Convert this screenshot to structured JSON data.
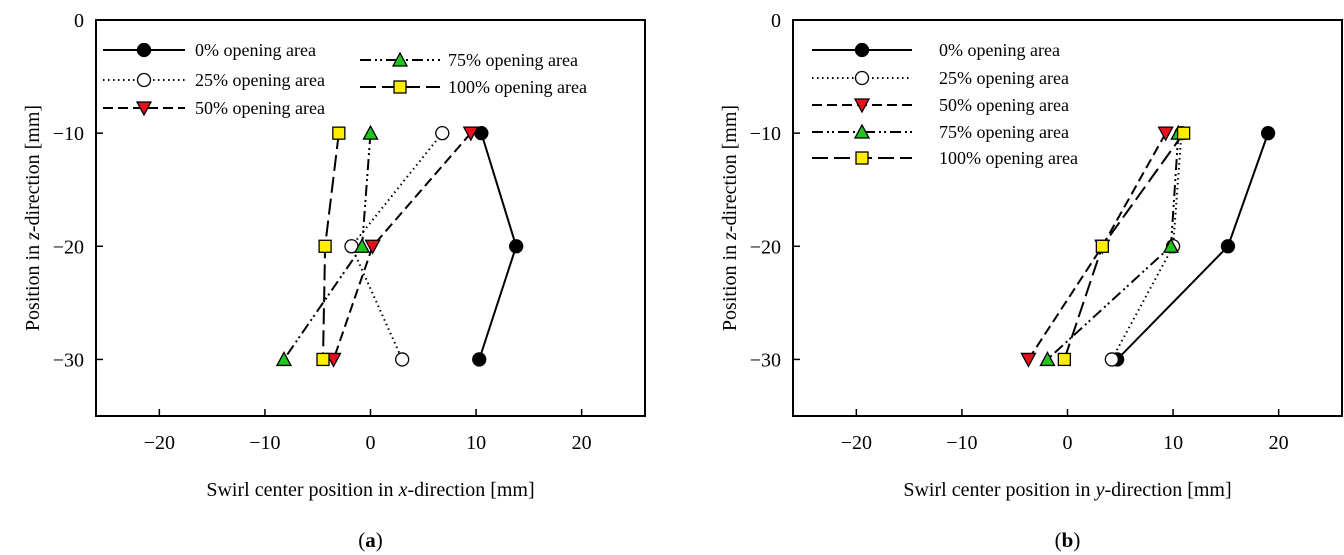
{
  "chart_data": [
    {
      "type": "line",
      "panel_label": "(a)",
      "xlabel": "Swirl center position in x-direction [mm]",
      "xlabel_prefix": "Swirl center position in ",
      "xlabel_var": "x",
      "xlabel_suffix": "-direction [mm]",
      "ylabel_prefix": "Position in ",
      "ylabel_var": "z",
      "ylabel_suffix": "-direction [mm]",
      "xlim": [
        -26,
        26
      ],
      "ylim": [
        -35,
        0
      ],
      "xticks": [
        -20,
        -10,
        0,
        10,
        20
      ],
      "yticks": [
        0,
        -10,
        -20,
        -30
      ],
      "grid": false,
      "legend": "top, two columns",
      "series": [
        {
          "name": "0% opening area",
          "x": [
            10.5,
            13.8,
            10.3
          ],
          "y": [
            -10,
            -20,
            -30
          ]
        },
        {
          "name": "25% opening area",
          "x": [
            6.8,
            -1.8,
            3.0
          ],
          "y": [
            -10,
            -20,
            -30
          ]
        },
        {
          "name": "50% opening area",
          "x": [
            9.5,
            0.2,
            -3.5
          ],
          "y": [
            -10,
            -20,
            -30
          ]
        },
        {
          "name": "75% opening area",
          "x": [
            0.0,
            -0.8,
            -8.2
          ],
          "y": [
            -10,
            -20,
            -30
          ]
        },
        {
          "name": "100% opening area",
          "x": [
            -3.0,
            -4.3,
            -4.5
          ],
          "y": [
            -10,
            -20,
            -30
          ]
        }
      ]
    },
    {
      "type": "line",
      "panel_label": "(b)",
      "xlabel": "Swirl center position in y-direction [mm]",
      "xlabel_prefix": "Swirl center position in ",
      "xlabel_var": "y",
      "xlabel_suffix": "-direction [mm]",
      "ylabel_prefix": "Position in ",
      "ylabel_var": "z",
      "ylabel_suffix": "-direction [mm]",
      "xlim": [
        -26,
        26
      ],
      "ylim": [
        -35,
        0
      ],
      "xticks": [
        -20,
        -10,
        0,
        10,
        20
      ],
      "yticks": [
        0,
        -10,
        -20,
        -30
      ],
      "grid": false,
      "legend": "top-left, one column",
      "series": [
        {
          "name": "0% opening area",
          "x": [
            19.0,
            15.2,
            4.7
          ],
          "y": [
            -10,
            -20,
            -30
          ]
        },
        {
          "name": "25% opening area",
          "x": [
            10.8,
            10.0,
            4.2
          ],
          "y": [
            -10,
            -20,
            -30
          ]
        },
        {
          "name": "50% opening area",
          "x": [
            9.3,
            3.3,
            -3.7
          ],
          "y": [
            -10,
            -20,
            -30
          ]
        },
        {
          "name": "75% opening area",
          "x": [
            10.5,
            9.8,
            -1.9
          ],
          "y": [
            -10,
            -20,
            -30
          ]
        },
        {
          "name": "100% opening area",
          "x": [
            11.0,
            3.3,
            -0.3
          ],
          "y": [
            -10,
            -20,
            -30
          ]
        }
      ]
    }
  ],
  "series_styles": [
    {
      "dash": "",
      "marker": "circle",
      "fill": "#000000"
    },
    {
      "dash": "1.5,3.5",
      "marker": "circle",
      "fill": "#ffffff"
    },
    {
      "dash": "10,5",
      "marker": "triangle-down",
      "fill": "#e8101a"
    },
    {
      "dash": "11,4,2,3,2,4",
      "marker": "triangle-up",
      "fill": "#22c41e"
    },
    {
      "dash": "16,6",
      "marker": "square",
      "fill": "#ffee00"
    }
  ]
}
